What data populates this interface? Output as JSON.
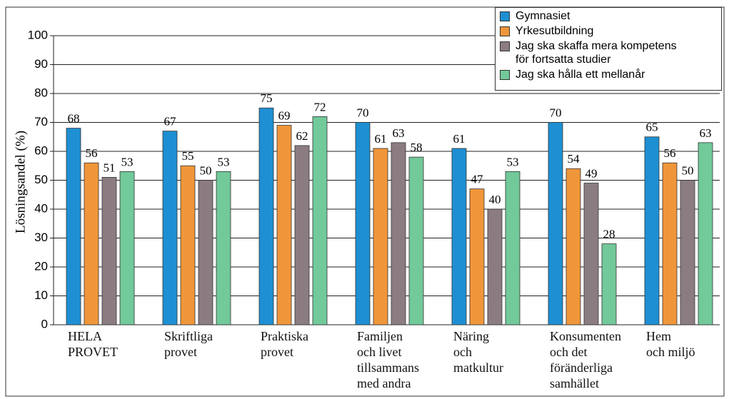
{
  "chart_data": {
    "type": "bar",
    "ylabel": "Lösningsandel (%)",
    "categories": [
      "HELA\nPROVET",
      "Skriftliga\nprovet",
      "Praktiska\nprovet",
      "Familjen\noch livet\ntillsammans\nmed andra",
      "Näring\noch\nmatkultur",
      "Konsumenten\noch det\nföränderliga\nsamhället",
      "Hem\noch miljö"
    ],
    "series": [
      {
        "name": "Gymnasiet",
        "color": "#1e8fd2",
        "values": [
          68,
          67,
          75,
          70,
          61,
          70,
          65
        ]
      },
      {
        "name": "Yrkesutbildning",
        "color": "#f0963a",
        "values": [
          56,
          55,
          69,
          61,
          47,
          54,
          56
        ]
      },
      {
        "name": "Jag ska skaffa mera kompetens\nför fortsatta studier",
        "color": "#8b7c82",
        "values": [
          51,
          50,
          62,
          63,
          40,
          49,
          50
        ]
      },
      {
        "name": "Jag ska hålla ett mellanår",
        "color": "#72c999",
        "values": [
          53,
          53,
          72,
          58,
          53,
          28,
          63
        ]
      }
    ],
    "ylim": [
      0,
      100
    ],
    "yticks": [
      0,
      10,
      20,
      30,
      40,
      50,
      60,
      70,
      80,
      90,
      100
    ],
    "grid": true,
    "legend": "top-right"
  }
}
